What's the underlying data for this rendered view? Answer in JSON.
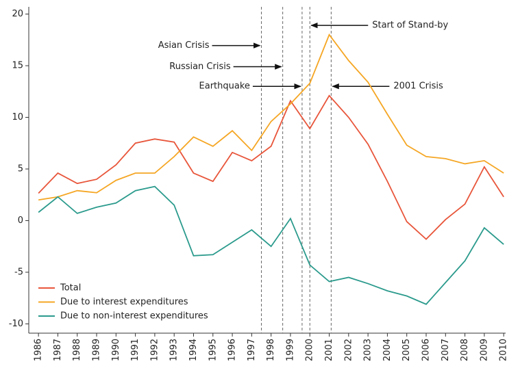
{
  "chart_data": {
    "type": "line",
    "x": [
      1986,
      1987,
      1988,
      1989,
      1990,
      1991,
      1992,
      1993,
      1994,
      1995,
      1996,
      1997,
      1998,
      1999,
      2000,
      2001,
      2002,
      2003,
      2004,
      2005,
      2006,
      2007,
      2008,
      2009,
      2010
    ],
    "series": [
      {
        "name": "Total",
        "color": "#e8553a",
        "values": [
          2.65,
          4.6,
          3.6,
          4.0,
          5.4,
          7.5,
          7.9,
          7.6,
          4.6,
          3.8,
          6.6,
          5.8,
          7.2,
          11.6,
          8.9,
          12.1,
          10.0,
          7.4,
          3.8,
          -0.1,
          -1.8,
          0.1,
          1.6,
          5.2,
          2.3
        ]
      },
      {
        "name": "Due to interest expenditures",
        "color": "#f5a623",
        "values": [
          2.0,
          2.3,
          2.9,
          2.7,
          3.9,
          4.6,
          4.6,
          6.2,
          8.1,
          7.2,
          8.7,
          6.8,
          9.6,
          11.3,
          13.3,
          18.0,
          15.5,
          13.4,
          10.3,
          7.3,
          6.2,
          6.0,
          5.5,
          5.8,
          4.6
        ]
      },
      {
        "name": "Due to non-interest expenditures",
        "color": "#2a9a8c",
        "values": [
          0.8,
          2.3,
          0.7,
          1.3,
          1.7,
          2.9,
          3.3,
          1.5,
          -3.4,
          -3.3,
          -2.1,
          -0.9,
          -2.5,
          0.2,
          -4.3,
          -5.9,
          -5.5,
          -6.1,
          -6.8,
          -7.3,
          -8.1,
          -6.0,
          -3.9,
          -0.7,
          -2.3
        ]
      }
    ],
    "xlim": [
      1985.5,
      2010.1
    ],
    "xticks": [
      1986,
      1987,
      1988,
      1989,
      1990,
      1991,
      1992,
      1993,
      1994,
      1995,
      1996,
      1997,
      1998,
      1999,
      2000,
      2001,
      2002,
      2003,
      2004,
      2005,
      2006,
      2007,
      2008,
      2009,
      2010
    ],
    "ylim": [
      -10.9,
      20.7
    ],
    "yticks": [
      -10,
      -5,
      0,
      5,
      10,
      15,
      20
    ],
    "legend": "lower left",
    "annotations": [
      {
        "label": "Asian Crisis",
        "x": 1997.5,
        "y": 16.95,
        "side": "left"
      },
      {
        "label": "Russian Crisis",
        "x": 1998.6,
        "y": 14.9,
        "side": "left"
      },
      {
        "label": "Earthquake",
        "x": 1999.6,
        "y": 13.0,
        "side": "left"
      },
      {
        "label": "Start of Stand-by",
        "x": 2000.0,
        "y": 18.9,
        "side": "right"
      },
      {
        "label": "2001 Crisis",
        "x": 2001.1,
        "y": 13.0,
        "side": "right"
      }
    ]
  }
}
